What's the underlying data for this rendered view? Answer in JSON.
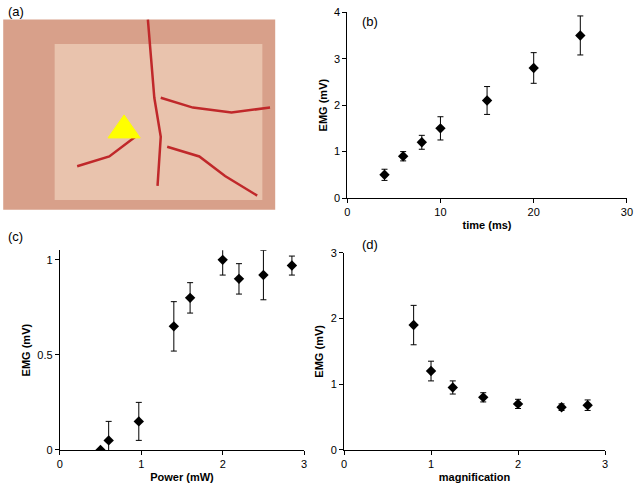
{
  "chart_data": [
    {
      "type": "image",
      "title": "(a)",
      "marker": "triangle",
      "color": "#ffff00"
    },
    {
      "type": "scatter",
      "title": "(b)",
      "x_label": "time (ms)",
      "y_label": "EMG (mV)",
      "x": [
        4,
        6,
        8,
        10,
        15,
        20,
        25
      ],
      "values": [
        0.5,
        0.9,
        1.2,
        1.5,
        2.1,
        2.8,
        3.5
      ],
      "error": [
        0.12,
        0.1,
        0.15,
        0.25,
        0.3,
        0.33,
        0.42
      ],
      "xlim": [
        0,
        30
      ],
      "xticks": [
        0,
        10,
        20,
        30
      ],
      "ylim": [
        0,
        4
      ],
      "yticks": [
        0,
        1,
        2,
        3,
        4
      ],
      "color": "#000000",
      "marker": "diamond",
      "grid": false
    },
    {
      "type": "scatter",
      "title": "(c)",
      "x_label": "Power (mW)",
      "y_label": "EMG (mV)",
      "x": [
        0.5,
        0.6,
        0.97,
        1.4,
        1.6,
        2.0,
        2.2,
        2.5,
        2.85
      ],
      "values": [
        0,
        0.05,
        0.15,
        0.65,
        0.8,
        1.0,
        0.9,
        0.92,
        0.97
      ],
      "error": [
        0,
        0.1,
        0.1,
        0.13,
        0.08,
        0.08,
        0.08,
        0.13,
        0.05
      ],
      "xlim": [
        0,
        3
      ],
      "xticks": [
        0,
        1,
        2,
        3
      ],
      "ylim": [
        0,
        1.05
      ],
      "yticks": [
        0,
        0.5,
        1
      ],
      "color": "#000000",
      "marker": "diamond",
      "grid": false
    },
    {
      "type": "scatter",
      "title": "(d)",
      "x_label": "magnification",
      "y_label": "EMG (mV)",
      "x": [
        0.8,
        1.0,
        1.25,
        1.6,
        2.0,
        2.5,
        2.8
      ],
      "values": [
        1.9,
        1.2,
        0.95,
        0.8,
        0.7,
        0.65,
        0.68
      ],
      "error": [
        0.3,
        0.15,
        0.1,
        0.07,
        0.07,
        0.05,
        0.08
      ],
      "xlim": [
        0,
        3
      ],
      "xticks": [
        0,
        1,
        2,
        3
      ],
      "ylim": [
        0,
        3
      ],
      "yticks": [
        0,
        1,
        2,
        3
      ],
      "color": "#000000",
      "marker": "diamond",
      "grid": false
    }
  ]
}
